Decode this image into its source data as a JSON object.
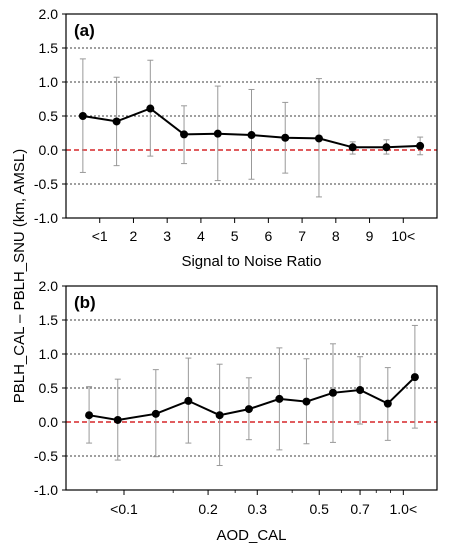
{
  "ylabel": "PBLH_CAL – PBLH_SNU (km, AMSL)",
  "colors": {
    "line": "#000000",
    "errorbar": "#999999",
    "zero_line": "#d62728",
    "grid": "#000000"
  },
  "chart_data": [
    {
      "type": "line",
      "panel_label": "(a)",
      "xlabel": "Signal to Noise Ratio",
      "ylim": [
        -1.0,
        2.0
      ],
      "yticks": [
        "-1.0",
        "-0.5",
        "0.0",
        "0.5",
        "1.0",
        "1.5",
        "2.0"
      ],
      "xtick_labels": [
        "<1",
        "2",
        "3",
        "4",
        "5",
        "6",
        "7",
        "8",
        "9",
        "10<"
      ],
      "grid": "horizontal dashed",
      "zero_line": "red dashed at 0",
      "x": [
        0.5,
        1.5,
        2.5,
        3.5,
        4.5,
        5.5,
        6.5,
        7.5,
        8.5,
        9.5,
        10.5
      ],
      "values": [
        0.5,
        0.42,
        0.61,
        0.23,
        0.24,
        0.22,
        0.18,
        0.17,
        0.04,
        0.04,
        0.06
      ],
      "error_low": [
        -0.33,
        -0.23,
        -0.09,
        -0.2,
        -0.45,
        -0.43,
        -0.34,
        -0.69,
        -0.06,
        -0.06,
        -0.07
      ],
      "error_high": [
        1.34,
        1.07,
        1.32,
        0.65,
        0.94,
        0.89,
        0.7,
        1.05,
        0.12,
        0.15,
        0.19
      ]
    },
    {
      "type": "line",
      "panel_label": "(b)",
      "xlabel": "AOD_CAL",
      "ylim": [
        -1.0,
        2.0
      ],
      "yticks": [
        "-1.0",
        "-0.5",
        "0.0",
        "0.5",
        "1.0",
        "1.5",
        "2.0"
      ],
      "xscale": "log",
      "xtick_labels": [
        "<0.1",
        "0.2",
        "0.3",
        "0.5",
        "0.7",
        "1.0<"
      ],
      "xtick_values": [
        0.1,
        0.2,
        0.3,
        0.5,
        0.7,
        1.0
      ],
      "grid": "horizontal dashed",
      "zero_line": "red dashed at 0",
      "x": [
        0.075,
        0.095,
        0.13,
        0.17,
        0.22,
        0.28,
        0.36,
        0.45,
        0.56,
        0.7,
        0.88,
        1.1
      ],
      "values": [
        0.1,
        0.03,
        0.12,
        0.31,
        0.1,
        0.19,
        0.34,
        0.3,
        0.43,
        0.47,
        0.27,
        0.66
      ],
      "error_low": [
        -0.31,
        -0.56,
        -0.51,
        -0.31,
        -0.64,
        -0.26,
        -0.41,
        -0.32,
        -0.3,
        -0.03,
        -0.27,
        -0.09
      ],
      "error_high": [
        0.52,
        0.63,
        0.77,
        0.94,
        0.85,
        0.65,
        1.09,
        0.93,
        1.15,
        0.96,
        0.8,
        1.42
      ]
    }
  ]
}
